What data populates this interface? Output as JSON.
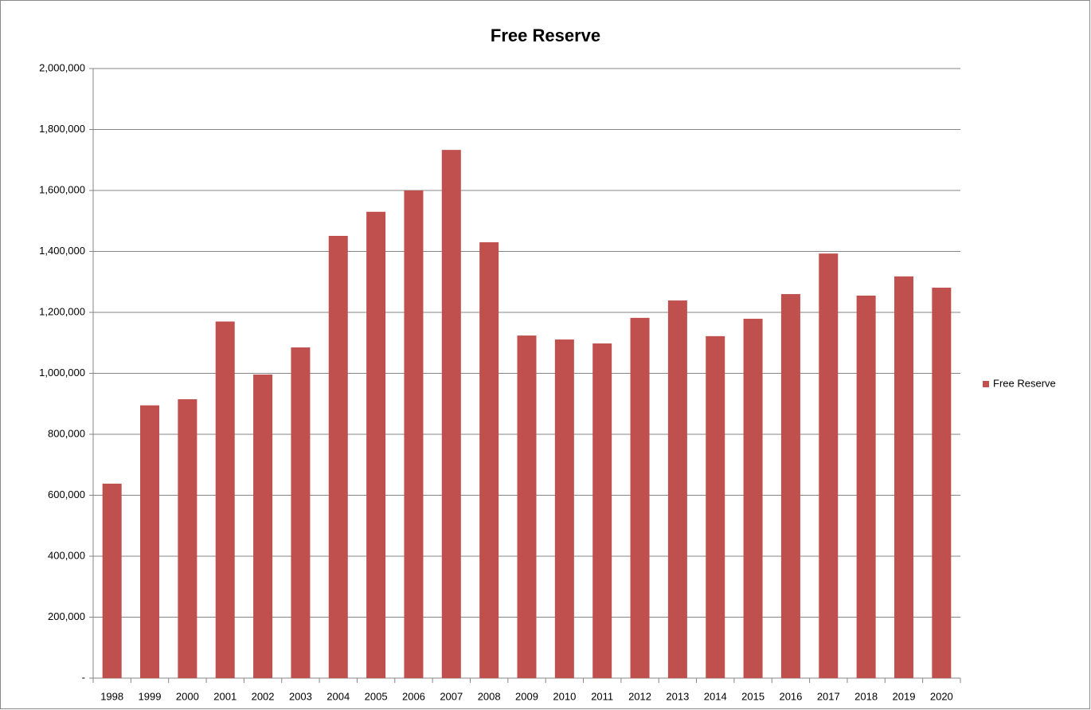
{
  "chart_data": {
    "type": "bar",
    "title": "Free Reserve",
    "categories": [
      "1998",
      "1999",
      "2000",
      "2001",
      "2002",
      "2003",
      "2004",
      "2005",
      "2006",
      "2007",
      "2008",
      "2009",
      "2010",
      "2011",
      "2012",
      "2013",
      "2014",
      "2015",
      "2016",
      "2017",
      "2018",
      "2019",
      "2020"
    ],
    "series": [
      {
        "name": "Free Reserve",
        "color": "#c0504d",
        "values": [
          638000,
          895000,
          915000,
          1170000,
          996000,
          1085000,
          1451000,
          1530000,
          1600000,
          1733000,
          1430000,
          1124000,
          1111000,
          1098000,
          1182000,
          1239000,
          1122000,
          1179000,
          1260000,
          1393000,
          1255000,
          1318000,
          1281000
        ]
      }
    ],
    "ylim": [
      0,
      2000000
    ],
    "yticks": [
      {
        "value": 0,
        "label": "-"
      },
      {
        "value": 200000,
        "label": "200,000"
      },
      {
        "value": 400000,
        "label": "400,000"
      },
      {
        "value": 600000,
        "label": "600,000"
      },
      {
        "value": 800000,
        "label": "800,000"
      },
      {
        "value": 1000000,
        "label": "1,000,000"
      },
      {
        "value": 1200000,
        "label": "1,200,000"
      },
      {
        "value": 1400000,
        "label": "1,400,000"
      },
      {
        "value": 1600000,
        "label": "1,600,000"
      },
      {
        "value": 1800000,
        "label": "1,800,000"
      },
      {
        "value": 2000000,
        "label": "2,000,000"
      }
    ],
    "grid": true,
    "legend": "right"
  }
}
